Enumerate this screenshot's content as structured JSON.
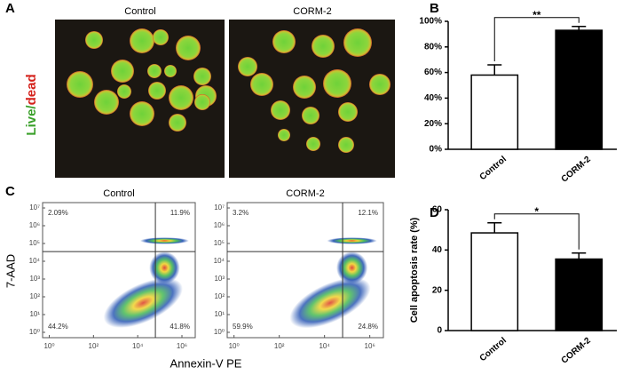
{
  "panel_labels": [
    "A",
    "B",
    "C",
    "D"
  ],
  "image_panel": {
    "captions": [
      "Control",
      "CORM-2"
    ],
    "stain_label": [
      "Live",
      "/",
      "dead"
    ]
  },
  "flow_xlabel": "Annexin-V PE",
  "flow_ylabel": "7-AAD",
  "chart_data": [
    {
      "type": "bar",
      "categories": [
        "Control",
        "CORM-2"
      ],
      "values": [
        58,
        93
      ],
      "errors": [
        8,
        3
      ],
      "colors": [
        "#ffffff",
        "#000000"
      ],
      "ylim": [
        0,
        100
      ],
      "yticks": [
        {
          "value": 0,
          "label": "0%"
        },
        {
          "value": 20,
          "label": "20%"
        },
        {
          "value": 40,
          "label": "40%"
        },
        {
          "value": 60,
          "label": "60%"
        },
        {
          "value": 80,
          "label": "80%"
        },
        {
          "value": 100,
          "label": "100%"
        }
      ],
      "significance": "**"
    },
    {
      "type": "flow",
      "title": "Control",
      "log_scale": true,
      "xlim": [
        0.5,
        4000000
      ],
      "ylim": [
        0.5,
        20000000
      ],
      "xticks": [
        {
          "value": 1,
          "label": "10⁰"
        },
        {
          "value": 100,
          "label": "10²"
        },
        {
          "value": 10000,
          "label": "10⁴"
        },
        {
          "value": 1000000,
          "label": "10⁶"
        }
      ],
      "yticks": [
        {
          "value": 1,
          "label": "10⁰"
        },
        {
          "value": 10,
          "label": "10¹"
        },
        {
          "value": 100,
          "label": "10²"
        },
        {
          "value": 1000,
          "label": "10³"
        },
        {
          "value": 10000,
          "label": "10⁴"
        },
        {
          "value": 100000,
          "label": "10⁵"
        },
        {
          "value": 1000000,
          "label": "10⁶"
        },
        {
          "value": 10000000,
          "label": "10⁷"
        }
      ],
      "gate": {
        "x": 63000,
        "y": 35000
      },
      "quadrants": {
        "upper_left": "2.09%",
        "upper_right": "11.9%",
        "lower_left": "44.2%",
        "lower_right": "41.8%"
      }
    },
    {
      "type": "flow",
      "title": "CORM-2",
      "log_scale": true,
      "xlim": [
        0.5,
        4000000
      ],
      "ylim": [
        0.5,
        20000000
      ],
      "xticks": [
        {
          "value": 1,
          "label": "10⁰"
        },
        {
          "value": 100,
          "label": "10²"
        },
        {
          "value": 10000,
          "label": "10⁴"
        },
        {
          "value": 1000000,
          "label": "10⁶"
        }
      ],
      "yticks": [
        {
          "value": 1,
          "label": "10⁰"
        },
        {
          "value": 10,
          "label": "10¹"
        },
        {
          "value": 100,
          "label": "10²"
        },
        {
          "value": 1000,
          "label": "10³"
        },
        {
          "value": 10000,
          "label": "10⁴"
        },
        {
          "value": 100000,
          "label": "10⁵"
        },
        {
          "value": 1000000,
          "label": "10⁶"
        },
        {
          "value": 10000000,
          "label": "10⁷"
        }
      ],
      "gate": {
        "x": 63000,
        "y": 35000
      },
      "quadrants": {
        "upper_left": "3.2%",
        "upper_right": "12.1%",
        "lower_left": "59.9%",
        "lower_right": "24.8%"
      }
    },
    {
      "type": "bar",
      "ylabel": "Cell apoptosis rate (%)",
      "categories": [
        "Control",
        "CORM-2"
      ],
      "values": [
        48.5,
        35.5
      ],
      "errors": [
        5,
        3
      ],
      "colors": [
        "#ffffff",
        "#000000"
      ],
      "ylim": [
        0,
        60
      ],
      "yticks": [
        0,
        20,
        40,
        60
      ],
      "significance": "*"
    }
  ]
}
